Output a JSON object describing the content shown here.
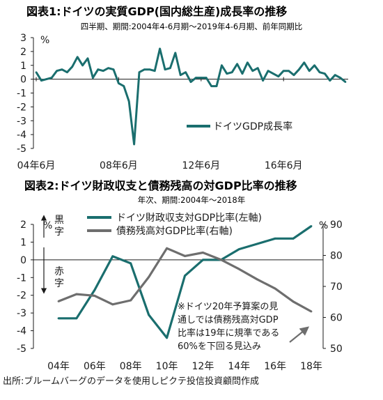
{
  "chart1": {
    "title": "図表1:ドイツの実質GDP(国内総生産)成長率の推移",
    "subtitle": "四半期、期間:2004年4-6月期～2019年4-6月期、前年同期比",
    "unit": "%"
  },
  "chart2": {
    "title": "図表2:ドイツ財政収支と債務残高の対GDP比率の推移",
    "subtitle": "年次、期間:2004年～2018年",
    "left_unit": "%",
    "right_unit": "%",
    "surplus_label": "黒字",
    "deficit_label": "赤字",
    "note": [
      "※ドイツ20年予算案の見",
      "通しでは債務残高対GDP",
      "比率は19年に規準である",
      "60%を下回る見込み"
    ]
  },
  "source": "出所:ブルームバーグのデータを使用しピクテ投信投資顧問作成",
  "chart_data": [
    {
      "type": "line",
      "title": "図表1:ドイツの実質GDP(国内総生産)成長率の推移",
      "subtitle": "四半期、期間:2004年4-6月期～2019年4-6月期、前年同期比",
      "ylabel": "%",
      "ylim": [
        -5,
        3
      ],
      "yticks": [
        "3",
        "2",
        "1",
        "0",
        "-1",
        "-2",
        "-3",
        "-4",
        "-5"
      ],
      "x_tick_labels": [
        "04年6月",
        "08年6月",
        "12年6月",
        "16年6月"
      ],
      "grid": false,
      "legend": "center-right",
      "color": "#1a6e6e",
      "series": [
        {
          "name": "ドイツGDP成長率",
          "x": [
            "2004Q2",
            "2004Q3",
            "2004Q4",
            "2005Q1",
            "2005Q2",
            "2005Q3",
            "2005Q4",
            "2006Q1",
            "2006Q2",
            "2006Q3",
            "2006Q4",
            "2007Q1",
            "2007Q2",
            "2007Q3",
            "2007Q4",
            "2008Q1",
            "2008Q2",
            "2008Q3",
            "2008Q4",
            "2009Q1",
            "2009Q2",
            "2009Q3",
            "2009Q4",
            "2010Q1",
            "2010Q2",
            "2010Q3",
            "2010Q4",
            "2011Q1",
            "2011Q2",
            "2011Q3",
            "2011Q4",
            "2012Q1",
            "2012Q2",
            "2012Q3",
            "2012Q4",
            "2013Q1",
            "2013Q2",
            "2013Q3",
            "2013Q4",
            "2014Q1",
            "2014Q2",
            "2014Q3",
            "2014Q4",
            "2015Q1",
            "2015Q2",
            "2015Q3",
            "2015Q4",
            "2016Q1",
            "2016Q2",
            "2016Q3",
            "2016Q4",
            "2017Q1",
            "2017Q2",
            "2017Q3",
            "2017Q4",
            "2018Q1",
            "2018Q2",
            "2018Q3",
            "2018Q4",
            "2019Q1",
            "2019Q2"
          ],
          "values": [
            0.5,
            -0.1,
            0.0,
            0.1,
            0.6,
            0.7,
            0.5,
            0.9,
            1.6,
            1.0,
            1.5,
            0.1,
            0.7,
            0.6,
            0.8,
            0.7,
            -0.3,
            -0.5,
            -1.6,
            -4.7,
            0.5,
            0.7,
            0.7,
            0.6,
            2.2,
            0.7,
            0.8,
            1.9,
            0.3,
            0.5,
            -0.2,
            0.1,
            0.1,
            0.1,
            -0.5,
            -0.5,
            1.0,
            0.4,
            0.5,
            1.1,
            0.4,
            1.2,
            0.6,
            0.8,
            -0.1,
            0.6,
            0.4,
            0.2,
            0.6,
            0.6,
            0.3,
            0.7,
            1.2,
            0.6,
            1.0,
            0.5,
            0.4,
            -0.1,
            0.3,
            0.1,
            -0.2
          ]
        }
      ]
    },
    {
      "type": "line",
      "title": "図表2:ドイツ財政収支と債務残高の対GDP比率の推移",
      "subtitle": "年次、期間:2004年～2018年",
      "categories": [
        "2004",
        "2005",
        "2006",
        "2007",
        "2008",
        "2009",
        "2010",
        "2011",
        "2012",
        "2013",
        "2014",
        "2015",
        "2016",
        "2017",
        "2018"
      ],
      "x_tick_labels": [
        "04年",
        "06年",
        "08年",
        "10年",
        "12年",
        "14年",
        "16年",
        "18年"
      ],
      "ylabel_left": "%",
      "ylabel_right": "%",
      "ylim_left": [
        -5,
        2
      ],
      "ylim_right": [
        50,
        90
      ],
      "yticks_left": [
        "2",
        "1",
        "0",
        "-1",
        "-2",
        "-3",
        "-4",
        "-5"
      ],
      "yticks_right": [
        "90",
        "80",
        "70",
        "60",
        "50"
      ],
      "grid": false,
      "legend": "top",
      "series": [
        {
          "name": "ドイツ財政収支対GDP比率(左軸)",
          "axis": "left",
          "color": "#1a6e6e",
          "values": [
            -3.3,
            -3.3,
            -1.7,
            0.2,
            -0.2,
            -3.1,
            -4.4,
            -0.9,
            0.0,
            0.0,
            0.6,
            0.9,
            1.2,
            1.2,
            1.9
          ]
        },
        {
          "name": "債務残高対GDP比率(右軸)",
          "axis": "right",
          "color": "#6e6e6e",
          "values": [
            65.2,
            67.5,
            67.0,
            64.2,
            65.5,
            73.0,
            82.3,
            79.8,
            80.9,
            78.6,
            75.6,
            72.3,
            69.3,
            65.1,
            61.9
          ]
        }
      ]
    }
  ]
}
